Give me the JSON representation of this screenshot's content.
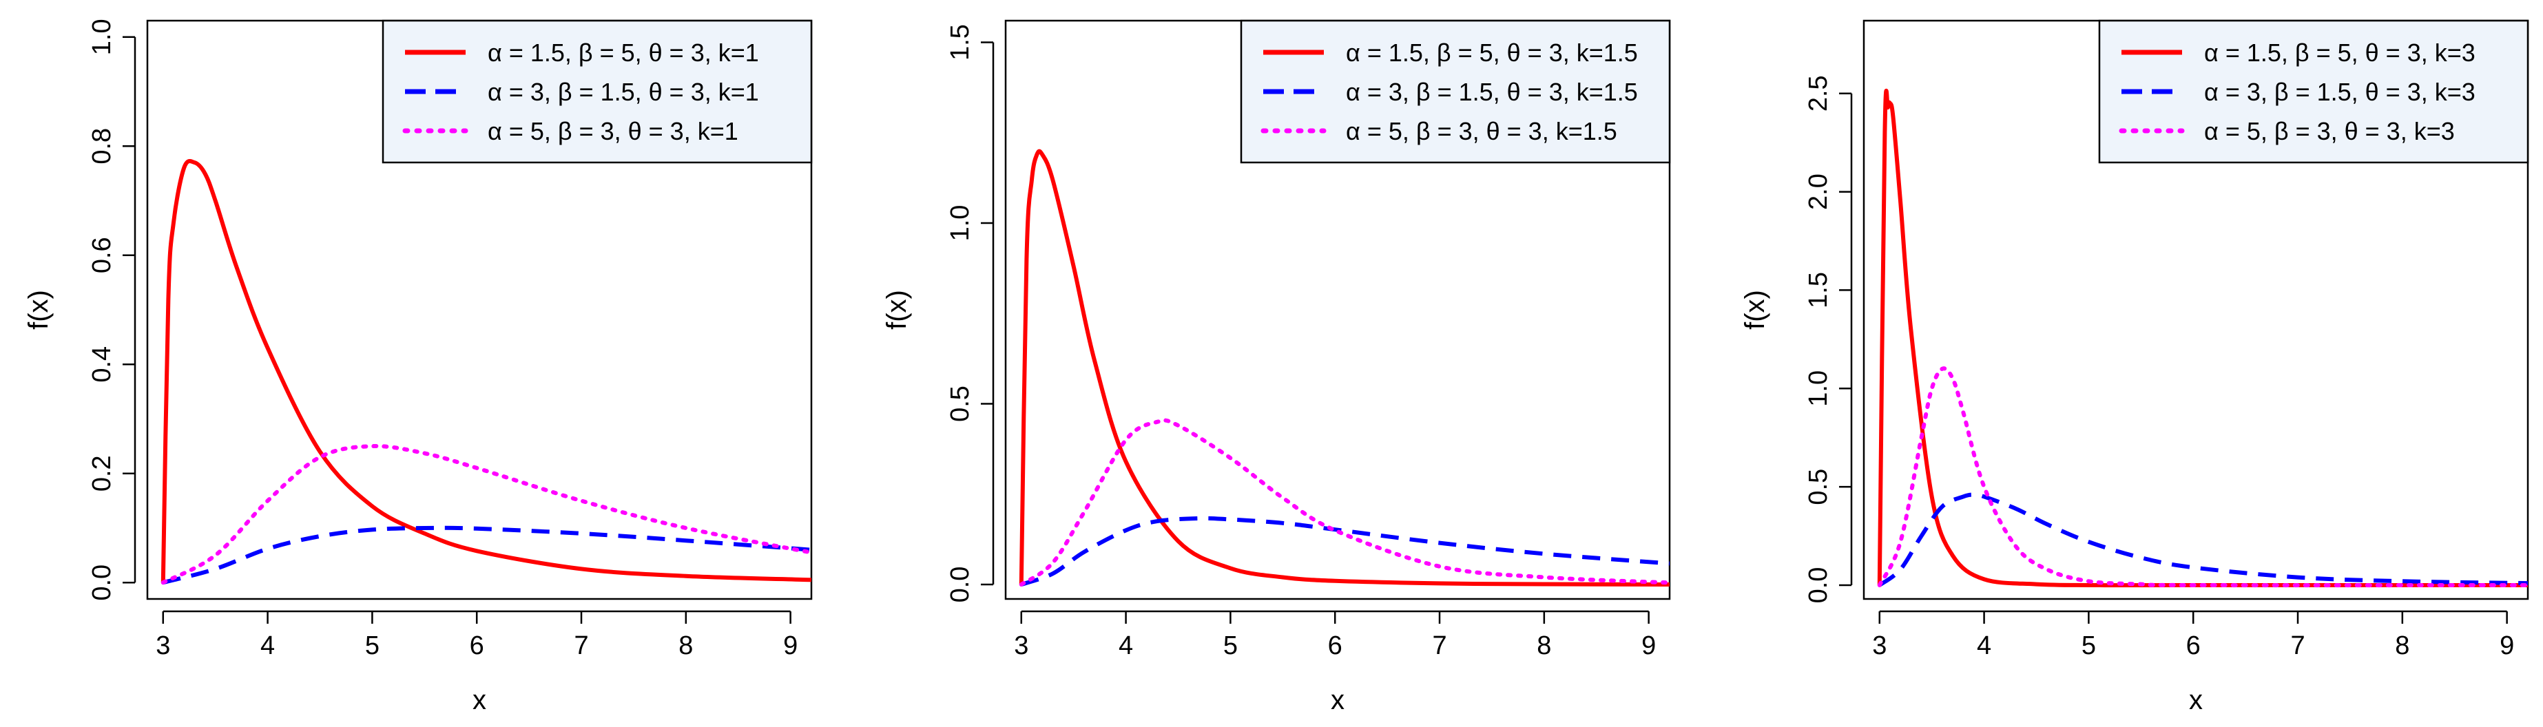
{
  "chart_data": [
    {
      "type": "line",
      "xlabel": "x",
      "ylabel": "f(x)",
      "xlim": [
        2.85,
        9.2
      ],
      "ylim": [
        -0.03,
        1.03
      ],
      "xticks": [
        3,
        4,
        5,
        6,
        7,
        8,
        9
      ],
      "yticks": [
        0.0,
        0.2,
        0.4,
        0.6,
        0.8,
        1.0
      ],
      "ytick_labels": [
        "0.0",
        "0.2",
        "0.4",
        "0.6",
        "0.8",
        "1.0"
      ],
      "grid": false,
      "legend_position": "top-right",
      "series": [
        {
          "name": "α = 1.5, β = 5, θ = 3, k=1",
          "color": "#ff0000",
          "dash": "solid",
          "x": [
            3.0,
            3.05,
            3.1,
            3.2,
            3.3,
            3.4,
            3.5,
            3.7,
            4.0,
            4.5,
            5.0,
            5.5,
            6.0,
            7.0,
            8.0,
            9.2
          ],
          "y": [
            0.0,
            0.52,
            0.66,
            0.76,
            0.77,
            0.75,
            0.7,
            0.58,
            0.43,
            0.24,
            0.14,
            0.09,
            0.058,
            0.025,
            0.012,
            0.005
          ]
        },
        {
          "name": "α = 3, β = 1.5, θ = 3, k=1",
          "color": "#0000ff",
          "dash": "dashed",
          "x": [
            3.0,
            3.5,
            4.0,
            4.5,
            5.0,
            5.5,
            6.0,
            7.0,
            8.0,
            9.2
          ],
          "y": [
            0.0,
            0.025,
            0.062,
            0.085,
            0.097,
            0.1,
            0.099,
            0.09,
            0.077,
            0.06
          ]
        },
        {
          "name": "α = 5, β = 3, θ = 3, k=1",
          "color": "#ff00ff",
          "dash": "dotted",
          "x": [
            3.0,
            3.5,
            4.0,
            4.5,
            5.0,
            5.5,
            6.0,
            7.0,
            8.0,
            9.2
          ],
          "y": [
            0.0,
            0.05,
            0.15,
            0.23,
            0.25,
            0.237,
            0.21,
            0.15,
            0.1,
            0.055
          ]
        }
      ]
    },
    {
      "type": "line",
      "xlabel": "x",
      "ylabel": "f(x)",
      "xlim": [
        2.85,
        9.2
      ],
      "ylim": [
        -0.04,
        1.56
      ],
      "xticks": [
        3,
        4,
        5,
        6,
        7,
        8,
        9
      ],
      "yticks": [
        0.0,
        0.5,
        1.0,
        1.5
      ],
      "ytick_labels": [
        "0.0",
        "0.5",
        "1.0",
        "1.5"
      ],
      "grid": false,
      "legend_position": "top-right",
      "series": [
        {
          "name": "α = 1.5, β = 5, θ = 3, k=1.5",
          "color": "#ff0000",
          "dash": "solid",
          "x": [
            3.0,
            3.05,
            3.1,
            3.15,
            3.2,
            3.3,
            3.5,
            3.7,
            4.0,
            4.5,
            5.0,
            5.5,
            6.0,
            7.0,
            8.0,
            9.2
          ],
          "y": [
            0.0,
            0.9,
            1.12,
            1.19,
            1.19,
            1.12,
            0.88,
            0.62,
            0.34,
            0.12,
            0.045,
            0.02,
            0.01,
            0.003,
            0.001,
            0.0
          ]
        },
        {
          "name": "α = 3, β = 1.5, θ = 3, k=1.5",
          "color": "#0000ff",
          "dash": "dashed",
          "x": [
            3.0,
            3.3,
            3.6,
            4.0,
            4.3,
            4.7,
            5.0,
            5.5,
            6.0,
            7.0,
            8.0,
            9.2
          ],
          "y": [
            0.0,
            0.03,
            0.09,
            0.15,
            0.175,
            0.183,
            0.18,
            0.17,
            0.152,
            0.115,
            0.085,
            0.058
          ]
        },
        {
          "name": "α = 5, β = 3, θ = 3, k=1.5",
          "color": "#ff00ff",
          "dash": "dotted",
          "x": [
            3.0,
            3.3,
            3.6,
            4.0,
            4.3,
            4.5,
            5.0,
            5.5,
            6.0,
            7.0,
            8.0,
            9.2
          ],
          "y": [
            0.0,
            0.06,
            0.2,
            0.4,
            0.45,
            0.44,
            0.35,
            0.24,
            0.15,
            0.05,
            0.02,
            0.005
          ]
        }
      ]
    },
    {
      "type": "line",
      "xlabel": "x",
      "ylabel": "f(x)",
      "xlim": [
        2.85,
        9.2
      ],
      "ylim": [
        -0.07,
        2.87
      ],
      "xticks": [
        3,
        4,
        5,
        6,
        7,
        8,
        9
      ],
      "yticks": [
        0.0,
        0.5,
        1.0,
        1.5,
        2.0,
        2.5
      ],
      "ytick_labels": [
        "0.0",
        "0.5",
        "1.0",
        "1.5",
        "2.0",
        "2.5"
      ],
      "grid": false,
      "legend_position": "top-right",
      "series": [
        {
          "name": "α = 1.5, β = 5, θ = 3, k=3",
          "color": "#ff0000",
          "dash": "solid",
          "x": [
            3.0,
            3.05,
            3.08,
            3.1,
            3.13,
            3.2,
            3.3,
            3.5,
            3.7,
            4.0,
            4.5,
            5.0,
            6.0,
            9.2
          ],
          "y": [
            0.0,
            2.3,
            2.43,
            2.45,
            2.38,
            1.95,
            1.3,
            0.45,
            0.15,
            0.03,
            0.005,
            0.0,
            0.0,
            0.0
          ]
        },
        {
          "name": "α = 3, β = 1.5, θ = 3, k=3",
          "color": "#0000ff",
          "dash": "dashed",
          "x": [
            3.0,
            3.2,
            3.4,
            3.6,
            3.8,
            3.9,
            4.0,
            4.3,
            4.6,
            5.0,
            5.5,
            6.0,
            7.0,
            8.0,
            9.2
          ],
          "y": [
            0.0,
            0.08,
            0.25,
            0.4,
            0.45,
            0.46,
            0.45,
            0.39,
            0.31,
            0.22,
            0.14,
            0.09,
            0.04,
            0.02,
            0.01
          ]
        },
        {
          "name": "α = 5, β = 3, θ = 3, k=3",
          "color": "#ff00ff",
          "dash": "dotted",
          "x": [
            3.0,
            3.2,
            3.4,
            3.5,
            3.6,
            3.7,
            3.8,
            4.0,
            4.3,
            4.6,
            5.0,
            5.5,
            6.0,
            9.2
          ],
          "y": [
            0.0,
            0.22,
            0.75,
            1.0,
            1.1,
            1.05,
            0.88,
            0.5,
            0.2,
            0.08,
            0.02,
            0.005,
            0.0,
            0.0
          ]
        }
      ]
    }
  ]
}
